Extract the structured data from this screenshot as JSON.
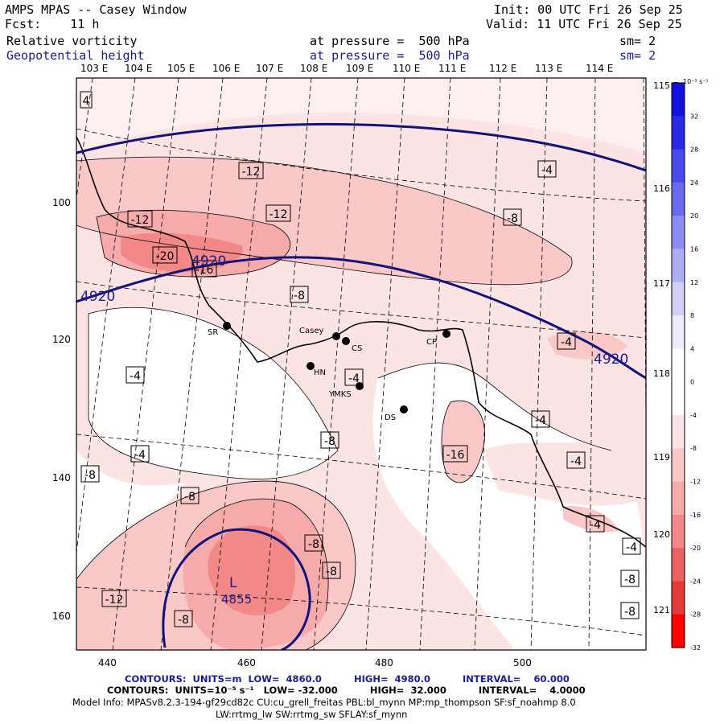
{
  "header": {
    "title": "AMPS MPAS -- Casey Window",
    "init": "Init: 00 UTC Fri 26 Sep 25",
    "fcst": "Fcst:    11 h",
    "valid": "Valid: 11 UTC Fri 26 Sep 25",
    "field1_name": "Relative vorticity",
    "field1_level": "at pressure =  500 hPa",
    "field1_sm": "sm= 2",
    "field2_name": "Geopotential height",
    "field2_level": "at pressure =  500 hPa",
    "field2_sm": "sm= 2"
  },
  "axes": {
    "top_lon_labels": [
      "103 E",
      "104 E",
      "105 E",
      "106 E",
      "107 E",
      "108 E",
      "109 E",
      "110 E",
      "111 E",
      "112 E",
      "113 E",
      "114 E"
    ],
    "right_lon_labels": [
      "115 E",
      "116 E",
      "117 E",
      "118 E",
      "119 E",
      "120 E",
      "121 E"
    ],
    "x_ticks": [
      "440",
      "460",
      "480",
      "500"
    ],
    "y_ticks": [
      "100",
      "120",
      "140",
      "160"
    ]
  },
  "colorbar": {
    "units": "10⁻⁵ s⁻¹",
    "labels": [
      "32",
      "28",
      "24",
      "20",
      "16",
      "12",
      "8",
      "4",
      "0",
      "-4",
      "-8",
      "-12",
      "-16",
      "-20",
      "-24",
      "-28",
      "-32"
    ],
    "colors": [
      "#1010e0",
      "#2a2ae6",
      "#4a4aea",
      "#6a6aee",
      "#8c8cf2",
      "#aeaef6",
      "#cfcff9",
      "#ececfc",
      "#ffffff",
      "#ffffff",
      "#fde4e4",
      "#fbc8c8",
      "#f7aaaa",
      "#f28888",
      "#ec6262",
      "#e53a3a",
      "#ff0000"
    ]
  },
  "stations": [
    {
      "id": "SR",
      "label": "SR"
    },
    {
      "id": "casey",
      "label": "Casey"
    },
    {
      "id": "cs",
      "label": "CS"
    },
    {
      "id": "hn",
      "label": "HN"
    },
    {
      "id": "ymks",
      "label": "YMKS"
    },
    {
      "id": "ds",
      "label": "DS"
    },
    {
      "id": "cp",
      "label": "CP"
    }
  ],
  "vort_labels": [
    "4",
    "-12",
    "-12",
    "-12",
    "-20",
    "-16",
    "-8",
    "-8",
    "-4",
    "-4",
    "-4",
    "-4",
    "-8",
    "-8",
    "-8",
    "-16",
    "-12",
    "-8",
    "-8",
    "-8",
    "-4",
    "-4",
    "-4",
    "-4",
    "-4",
    "-8",
    "-8"
  ],
  "height_labels": [
    "4920",
    "4920",
    "4920"
  ],
  "low": {
    "symbol": "L",
    "value": "4855"
  },
  "footer": {
    "line1": "CONTOURS:  UNITS=m  LOW=  4860.0          HIGH=  4980.0          INTERVAL=    60.000",
    "line2": "CONTOURS:  UNITS=10⁻⁵ s⁻¹   LOW= -32.000          HIGH=  32.000          INTERVAL=    4.0000",
    "line3": "Model Info: MPASv8.2.3-194-gf29cd82c CU:cu_grell_freitas PBL:bl_mynn MP:mp_thompson SF:sf_noahmp 8.0",
    "line4": "LW:rrtmg_lw SW:rrtmg_sw SFLAY:sf_mynn"
  }
}
